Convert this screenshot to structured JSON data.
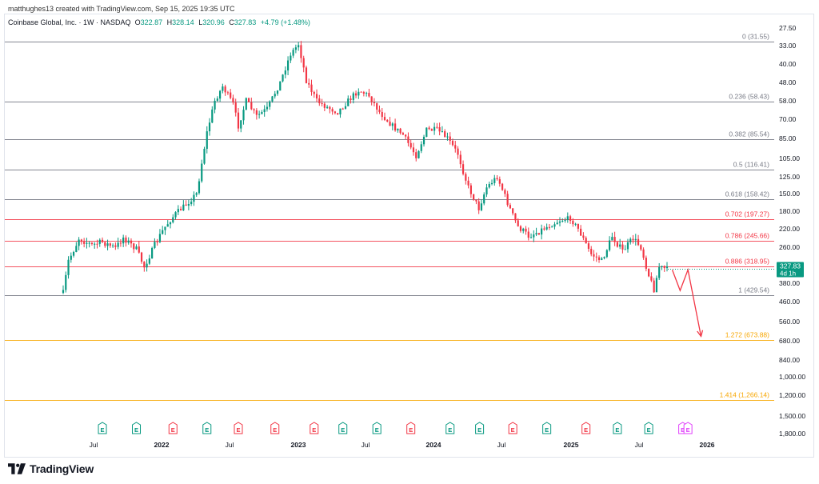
{
  "caption": "matthughes13 created with TradingView.com, Sep 15, 2025 19:35 UTC",
  "symbol": {
    "name": "Coinbase Global, Inc. · 1W · NASDAQ",
    "open_label": "O",
    "open": "322.87",
    "high_label": "H",
    "high": "328.14",
    "low_label": "L",
    "low": "320.96",
    "close_label": "C",
    "close": "327.83",
    "change": "+4.79 (+1.48%)"
  },
  "last_price": {
    "value": "327.83",
    "countdown": "4d 1h"
  },
  "brand": "TradingView",
  "colors": {
    "up": "#089981",
    "down": "#f23645",
    "fib_grey": "#787b86",
    "fib_red": "#f23645",
    "fib_orange": "#f7a600",
    "projection": "#f23645",
    "earnings_future": "#e040fb"
  },
  "chart_data": {
    "type": "candlestick",
    "scale": "inverted-log",
    "y_ticks": [
      "27.50",
      "33.00",
      "40.00",
      "48.00",
      "58.00",
      "70.00",
      "85.00",
      "105.00",
      "125.00",
      "150.00",
      "180.00",
      "220.00",
      "260.00",
      "380.00",
      "460.00",
      "560.00",
      "680.00",
      "840.00",
      "1,000.00",
      "1,200.00",
      "1,500.00",
      "1,800.00"
    ],
    "x_ticks": [
      "Jul",
      "2022",
      "Jul",
      "2023",
      "Jul",
      "2024",
      "Jul",
      "2025",
      "Jul",
      "2026"
    ],
    "fib_levels": [
      {
        "label": "0 (31.55)",
        "price": 31.55,
        "color": "grey"
      },
      {
        "label": "0.236 (58.43)",
        "price": 58.43,
        "color": "grey"
      },
      {
        "label": "0.382 (85.54)",
        "price": 85.54,
        "color": "grey"
      },
      {
        "label": "0.5 (116.41)",
        "price": 116.41,
        "color": "grey"
      },
      {
        "label": "0.618 (158.42)",
        "price": 158.42,
        "color": "grey"
      },
      {
        "label": "0.702 (197.27)",
        "price": 197.27,
        "color": "red"
      },
      {
        "label": "0.786 (245.66)",
        "price": 245.66,
        "color": "red"
      },
      {
        "label": "0.886 (318.95)",
        "price": 318.95,
        "color": "red"
      },
      {
        "label": "1 (429.54)",
        "price": 429.54,
        "color": "grey"
      },
      {
        "label": "1.272 (673.88)",
        "price": 673.88,
        "color": "orange"
      },
      {
        "label": "1.414 (1,266.14)",
        "price": 1266.14,
        "color": "orange"
      }
    ],
    "path_closes": [
      [
        "2021-04-12",
        420
      ],
      [
        "2021-04-26",
        300
      ],
      [
        "2021-05-24",
        240
      ],
      [
        "2021-06-28",
        255
      ],
      [
        "2021-07-26",
        248
      ],
      [
        "2021-08-30",
        262
      ],
      [
        "2021-09-20",
        238
      ],
      [
        "2021-10-25",
        265
      ],
      [
        "2021-11-15",
        320
      ],
      [
        "2021-12-13",
        255
      ],
      [
        "2022-01-10",
        215
      ],
      [
        "2022-02-07",
        185
      ],
      [
        "2022-03-07",
        168
      ],
      [
        "2022-04-04",
        150
      ],
      [
        "2022-05-02",
        80
      ],
      [
        "2022-05-23",
        58
      ],
      [
        "2022-06-13",
        50
      ],
      [
        "2022-07-11",
        60
      ],
      [
        "2022-07-25",
        75
      ],
      [
        "2022-08-15",
        58
      ],
      [
        "2022-09-12",
        68
      ],
      [
        "2022-10-10",
        63
      ],
      [
        "2022-11-14",
        48
      ],
      [
        "2022-12-12",
        36
      ],
      [
        "2023-01-02",
        32.5
      ],
      [
        "2023-01-23",
        47
      ],
      [
        "2023-02-20",
        58
      ],
      [
        "2023-03-20",
        62
      ],
      [
        "2023-04-17",
        65
      ],
      [
        "2023-05-15",
        58
      ],
      [
        "2023-06-12",
        52
      ],
      [
        "2023-07-10",
        55
      ],
      [
        "2023-08-07",
        65
      ],
      [
        "2023-09-11",
        75
      ],
      [
        "2023-10-09",
        82
      ],
      [
        "2023-11-13",
        102
      ],
      [
        "2023-12-11",
        78
      ],
      [
        "2024-01-08",
        78
      ],
      [
        "2024-02-05",
        85
      ],
      [
        "2024-03-04",
        100
      ],
      [
        "2024-04-01",
        140
      ],
      [
        "2024-04-29",
        175
      ],
      [
        "2024-05-20",
        140
      ],
      [
        "2024-06-17",
        125
      ],
      [
        "2024-07-15",
        165
      ],
      [
        "2024-08-12",
        215
      ],
      [
        "2024-09-09",
        235
      ],
      [
        "2024-10-07",
        225
      ],
      [
        "2024-11-04",
        212
      ],
      [
        "2024-12-02",
        200
      ],
      [
        "2024-12-30",
        195
      ],
      [
        "2025-01-27",
        230
      ],
      [
        "2025-02-24",
        280
      ],
      [
        "2025-03-24",
        300
      ],
      [
        "2025-04-21",
        235
      ],
      [
        "2025-05-19",
        270
      ],
      [
        "2025-06-16",
        240
      ],
      [
        "2025-07-07",
        260
      ],
      [
        "2025-07-28",
        350
      ],
      [
        "2025-08-11",
        405
      ],
      [
        "2025-08-25",
        320
      ],
      [
        "2025-09-15",
        327.83
      ]
    ],
    "projection": [
      [
        "2025-09-29",
        330
      ],
      [
        "2025-10-20",
        410
      ],
      [
        "2025-11-10",
        330
      ],
      [
        "2025-12-15",
        650
      ]
    ],
    "earnings_markers": [
      "E",
      "E",
      "E",
      "E",
      "E",
      "E",
      "E",
      "E",
      "E",
      "E",
      "E",
      "E",
      "E",
      "E",
      "E",
      "E",
      "E",
      "E",
      "E"
    ],
    "earnings_positions": [
      "2021-07-26",
      "2021-10-25",
      "2022-01-31",
      "2022-05-02",
      "2022-07-25",
      "2022-10-31",
      "2023-02-13",
      "2023-05-01",
      "2023-07-31",
      "2023-10-30",
      "2024-02-12",
      "2024-05-01",
      "2024-07-29",
      "2024-10-28",
      "2025-02-10",
      "2025-05-05",
      "2025-07-28",
      "2025-10-27",
      "2025-11-10"
    ],
    "earnings_types": [
      "up",
      "up",
      "down",
      "up",
      "down",
      "down",
      "down",
      "up",
      "up",
      "down",
      "up",
      "up",
      "down",
      "up",
      "down",
      "up",
      "up",
      "future-purple",
      "future-purple"
    ]
  }
}
